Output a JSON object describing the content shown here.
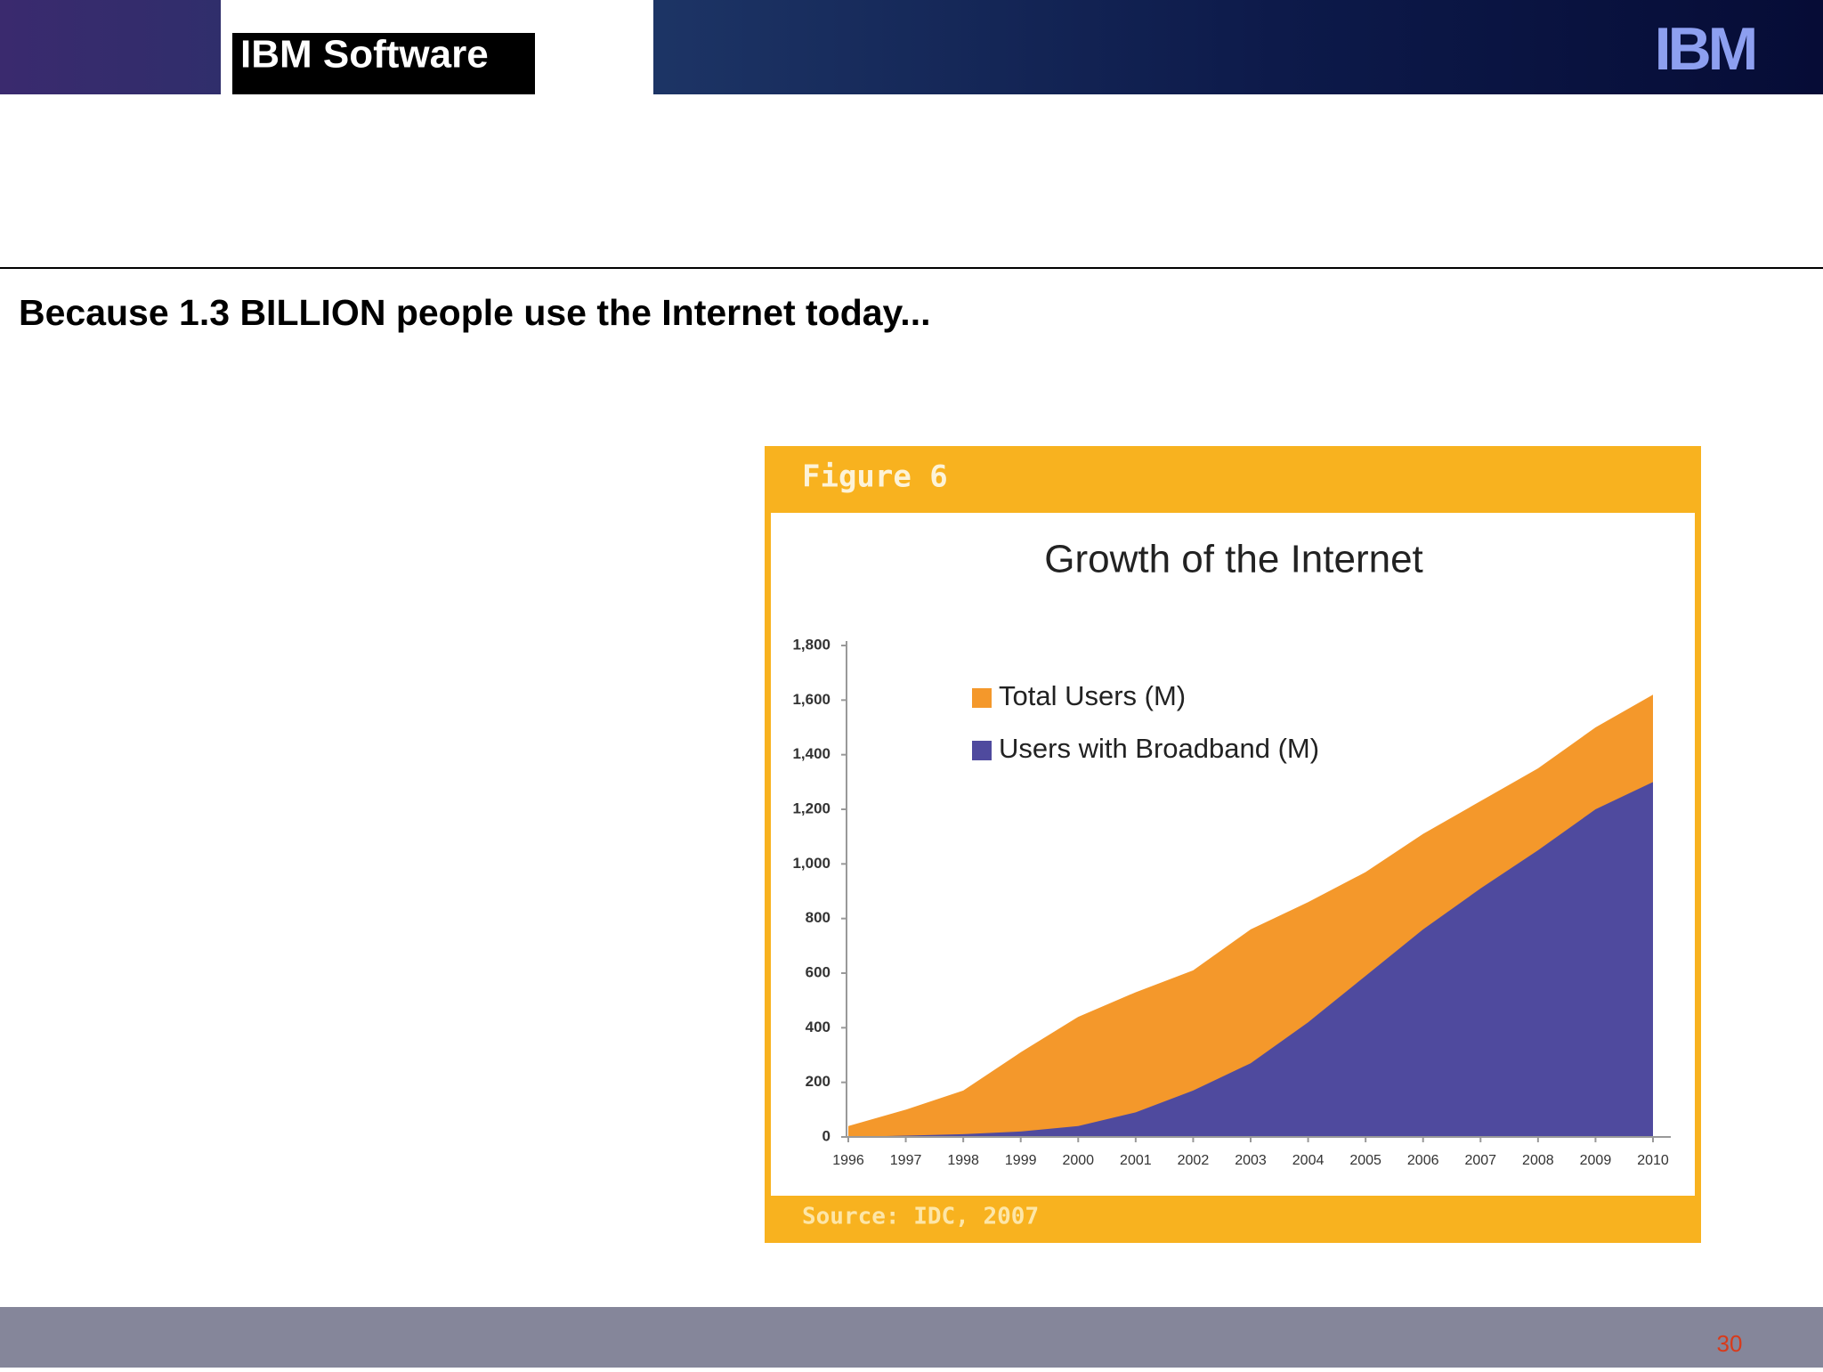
{
  "header": {
    "title": "IBM Software",
    "logo": "IBM"
  },
  "slide_title": "Because 1.3 BILLION people use the Internet today...",
  "figure_label": "Figure 6",
  "source": "Source: IDC, 2007",
  "page_number": "30",
  "chart_data": {
    "type": "area",
    "title": "Growth of the Internet",
    "x": [
      1996,
      1997,
      1998,
      1999,
      2000,
      2001,
      2002,
      2003,
      2004,
      2005,
      2006,
      2007,
      2008,
      2009,
      2010
    ],
    "xlim": [
      1996,
      2010
    ],
    "xticks": [
      1996,
      1997,
      1998,
      1999,
      2000,
      2001,
      2002,
      2003,
      2004,
      2005,
      2006,
      2007,
      2008,
      2009,
      2010
    ],
    "series": [
      {
        "name": "Total Users (M)",
        "color": "#f4982b",
        "values": [
          40,
          100,
          170,
          310,
          440,
          530,
          610,
          760,
          860,
          970,
          1110,
          1230,
          1350,
          1500,
          1620
        ]
      },
      {
        "name": "Users with Broadband (M)",
        "color": "#4f4a9e",
        "values": [
          0,
          5,
          10,
          20,
          40,
          90,
          170,
          270,
          420,
          590,
          760,
          910,
          1050,
          1200,
          1300
        ]
      }
    ],
    "ylim": [
      0,
      1800
    ],
    "yticks": [
      0,
      200,
      400,
      600,
      800,
      {
        "value": 1000,
        "label": "1,000"
      },
      {
        "value": 1200,
        "label": "1,200"
      },
      {
        "value": 1400,
        "label": "1,400"
      },
      {
        "value": 1600,
        "label": "1,600"
      },
      {
        "value": 1800,
        "label": "1,800"
      }
    ],
    "legend": "upper left"
  }
}
